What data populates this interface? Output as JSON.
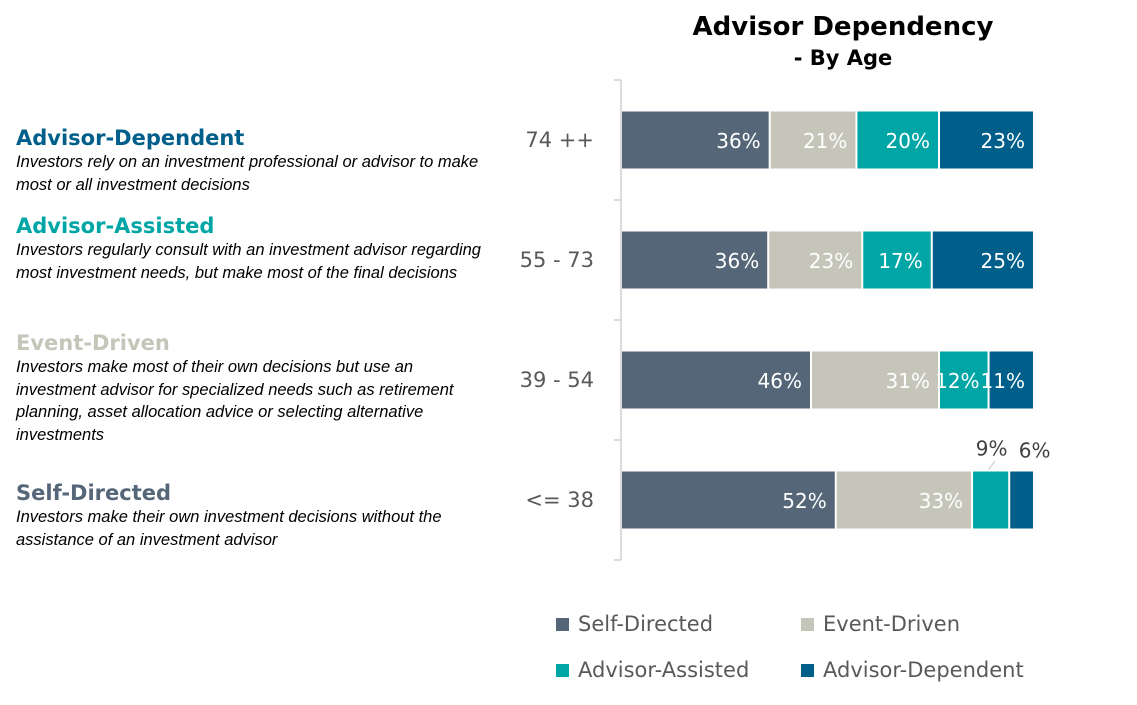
{
  "chart_data": {
    "type": "bar",
    "orientation": "horizontal",
    "stacked": true,
    "title": "Advisor Dependency",
    "subtitle": "- By Age",
    "categories": [
      "74 ++",
      "55 - 73",
      "39 - 54",
      "<= 38"
    ],
    "series": [
      {
        "name": "Self-Directed",
        "color": "#546677",
        "values": [
          36,
          36,
          46,
          52
        ]
      },
      {
        "name": "Event-Driven",
        "color": "#c5c5b9",
        "values": [
          21,
          23,
          31,
          33
        ]
      },
      {
        "name": "Advisor-Assisted",
        "color": "#00a6a6",
        "values": [
          20,
          17,
          12,
          9
        ]
      },
      {
        "name": "Advisor-Dependent",
        "color": "#005f8a",
        "values": [
          23,
          25,
          11,
          6
        ]
      }
    ],
    "data_labels": [
      [
        "36%",
        "21%",
        "20%",
        "23%"
      ],
      [
        "36%",
        "23%",
        "17%",
        "25%"
      ],
      [
        "46%",
        "31%",
        "12%",
        "11%"
      ],
      [
        "52%",
        "33%",
        "9%",
        "6%"
      ]
    ],
    "legend_position": "bottom",
    "grid": false
  },
  "segments": [
    {
      "name": "Advisor-Dependent",
      "color": "#005f8a",
      "description": "Investors rely on an investment professional or advisor to make most or all investment decisions"
    },
    {
      "name": "Advisor-Assisted",
      "color": "#00a6a6",
      "description": "Investors regularly consult with an investment advisor regarding most investment needs, but make most of the final decisions"
    },
    {
      "name": "Event-Driven",
      "color": "#c5c5b9",
      "description": "Investors make most of their own decisions but use an investment advisor for specialized needs such as retirement planning, asset allocation advice or selecting alternative investments"
    },
    {
      "name": "Self-Directed",
      "color": "#546677",
      "description": "Investors make their own investment decisions without the assistance of an investment advisor"
    }
  ]
}
